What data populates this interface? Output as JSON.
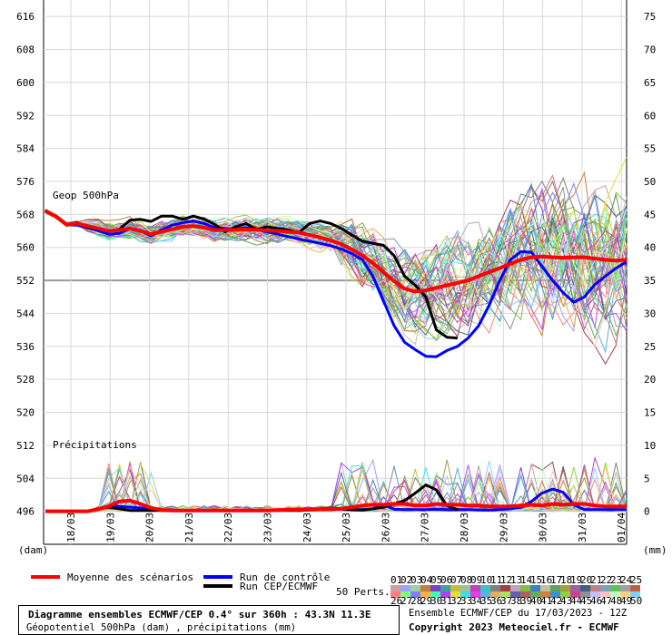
{
  "chart_data": {
    "type": "line",
    "left_axis": {
      "min": 488,
      "max": 620,
      "ticks": [
        616,
        608,
        600,
        592,
        584,
        576,
        568,
        560,
        552,
        544,
        536,
        528,
        520,
        512,
        504,
        496
      ],
      "unit": "(dam)"
    },
    "right_axis": {
      "ticks": [
        75,
        70,
        65,
        60,
        55,
        50,
        45,
        40,
        35,
        30,
        25,
        20,
        15,
        10,
        5,
        0
      ],
      "unit": "(mm)"
    },
    "x_ticks": [
      "18/03",
      "19/03",
      "20/03",
      "21/03",
      "22/03",
      "23/03",
      "24/03",
      "25/03",
      "26/03",
      "27/03",
      "28/03",
      "29/03",
      "30/03",
      "31/03",
      "01/04"
    ],
    "annotations": {
      "geop": "Geop 500hPa",
      "precip": "Précipitations"
    },
    "series_mean": {
      "name": "Moyenne des scénarios",
      "color": "#ff0000",
      "values": [
        568.8,
        567.5,
        565.5,
        565.8,
        565.2,
        564.6,
        564.0,
        564.2,
        564.6,
        564.0,
        563.2,
        563.8,
        564.4,
        565.0,
        565.2,
        564.8,
        564.2,
        564.2,
        564.3,
        564.4,
        564.3,
        564.1,
        564.0,
        563.8,
        563.6,
        563.0,
        562.4,
        561.7,
        560.8,
        559.5,
        558.0,
        556.2,
        554.0,
        551.8,
        550.0,
        549.3,
        549.6,
        550.2,
        550.8,
        551.4,
        552.0,
        553.0,
        554.0,
        555.0,
        556.0,
        557.0,
        557.6,
        557.8,
        557.6,
        557.5,
        557.6,
        557.6,
        557.3,
        557.0,
        556.8,
        557.0
      ],
      "precip": [
        496,
        496,
        496,
        496,
        496,
        496.5,
        497.2,
        498.4,
        498.6,
        497.8,
        496.8,
        496.3,
        496.2,
        496.2,
        496.2,
        496.2,
        496.2,
        496.2,
        496.2,
        496.2,
        496.2,
        496.2,
        496.3,
        496.4,
        496.4,
        496.5,
        496.5,
        496.6,
        496.6,
        497.0,
        497.4,
        497.6,
        497.6,
        497.8,
        497.8,
        497.4,
        497.4,
        497.8,
        497.6,
        497.6,
        497.4,
        497.4,
        497.2,
        497.2,
        497.2,
        497.4,
        497.6,
        497.4,
        497.8,
        497.6,
        497.8,
        497.8,
        497.4,
        497.2,
        497.2,
        497.2
      ]
    },
    "series_control": {
      "name": "Run de contrôle",
      "color": "#0000ff",
      "values": [
        569,
        567.5,
        565.5,
        565.4,
        564.8,
        564.0,
        563.2,
        563.4,
        564.6,
        564.0,
        562.8,
        564.2,
        565.4,
        566.0,
        566.4,
        565.8,
        564.8,
        564.6,
        564.4,
        564.8,
        564.3,
        563.8,
        563.2,
        562.6,
        562.0,
        561.5,
        561.0,
        560.4,
        559.6,
        558.5,
        557.0,
        553.0,
        547.0,
        541.0,
        537.0,
        535.2,
        533.6,
        533.5,
        535.0,
        536.0,
        538.0,
        541.0,
        546.0,
        552.0,
        557.0,
        559.0,
        558.8,
        555.4,
        552.0,
        549.0,
        546.7,
        548.0,
        551.0,
        553.0,
        555.0,
        556.5
      ],
      "precip": [
        496,
        496,
        496,
        496,
        496,
        496.5,
        497.4,
        497.2,
        497.0,
        496.8,
        496.6,
        496.4,
        496.3,
        496.2,
        496.2,
        496.2,
        496.2,
        496.2,
        496.2,
        496.2,
        496.2,
        496.2,
        496.3,
        496.4,
        496.2,
        496.3,
        496.4,
        496.4,
        496.5,
        496.4,
        496.4,
        496.6,
        497.6,
        496.5,
        496.4,
        496.4,
        496.4,
        496.5,
        496.4,
        496.4,
        496.4,
        496.3,
        496.3,
        496.4,
        496.6,
        497.0,
        498.4,
        500.4,
        501.4,
        500.6,
        497.6,
        496.4,
        496.4,
        496.4,
        496.4,
        496.4
      ]
    },
    "series_oper": {
      "name": "Run CEP/ECMWF",
      "color": "#000000",
      "values": [
        569,
        567.6,
        565.6,
        566.0,
        564.8,
        564.6,
        564.0,
        564.4,
        566.6,
        566.8,
        566.3,
        567.6,
        567.6,
        566.8,
        567.6,
        566.9,
        565.6,
        563.8,
        565.0,
        565.8,
        564.4,
        565.0,
        564.6,
        564.2,
        563.6,
        565.8,
        566.4,
        565.8,
        564.6,
        563.0,
        561.5,
        561.0,
        560.5,
        558.0,
        553.0,
        550.8,
        548.0,
        540.0,
        538.2,
        538.0
      ],
      "precip": [
        496,
        496,
        496,
        496,
        496,
        496.5,
        497.0,
        496.6,
        496.2,
        496.2,
        496.2,
        496.2,
        496.2,
        496.2,
        496.2,
        496.2,
        496.2,
        496.2,
        496.2,
        496.2,
        496.2,
        496.2,
        496.2,
        496.2,
        496.2,
        496.4,
        496.6,
        496.8,
        496.6,
        496.4,
        496.3,
        496.6,
        497.0,
        497.8,
        498.6,
        500.4,
        502.4,
        501.2,
        497.4,
        496.4
      ]
    },
    "members_count": 50
  },
  "legend": {
    "mean": "Moyenne des scénarios",
    "control": "Run de contrôle",
    "oper": "Run CEP/ECMWF",
    "perts": "50 Perts.",
    "perts_row1": [
      "01",
      "02",
      "03",
      "04",
      "05",
      "06",
      "07",
      "08",
      "09",
      "10",
      "11",
      "12",
      "13",
      "14",
      "15",
      "16",
      "17",
      "18",
      "19",
      "20",
      "21",
      "22",
      "23",
      "24",
      "25"
    ],
    "perts_row2": [
      "26",
      "27",
      "28",
      "29",
      "30",
      "31",
      "32",
      "33",
      "34",
      "35",
      "36",
      "37",
      "38",
      "39",
      "40",
      "41",
      "42",
      "43",
      "44",
      "45",
      "46",
      "47",
      "48",
      "49",
      "50"
    ],
    "member_colors": [
      "#d0a0a0",
      "#a0a0ff",
      "#a0d0a0",
      "#c08040",
      "#8040c0",
      "#40a0a0",
      "#c0c040",
      "#a0c0a0",
      "#c040c0",
      "#40c0c0",
      "#808080",
      "#a04040",
      "#c0a0c0",
      "#80c040",
      "#4080c0",
      "#c0c0a0",
      "#60a060",
      "#a0a040",
      "#a060a0",
      "#406080",
      "#c08080",
      "#80a0c0",
      "#60c060",
      "#a0a0a0",
      "#c06040"
    ]
  },
  "footer": {
    "title": "Diagramme ensembles ECMWF/CEP 0.4° sur 360h : 43.3N 11.3E",
    "subtitle": "Géopotentiel 500hPa (dam) , précipitations (mm)",
    "run": "Ensemble ECMWF/CEP du 17/03/2023 - 12Z",
    "copyright": "Copyright 2023 Meteociel.fr - ECMWF"
  }
}
